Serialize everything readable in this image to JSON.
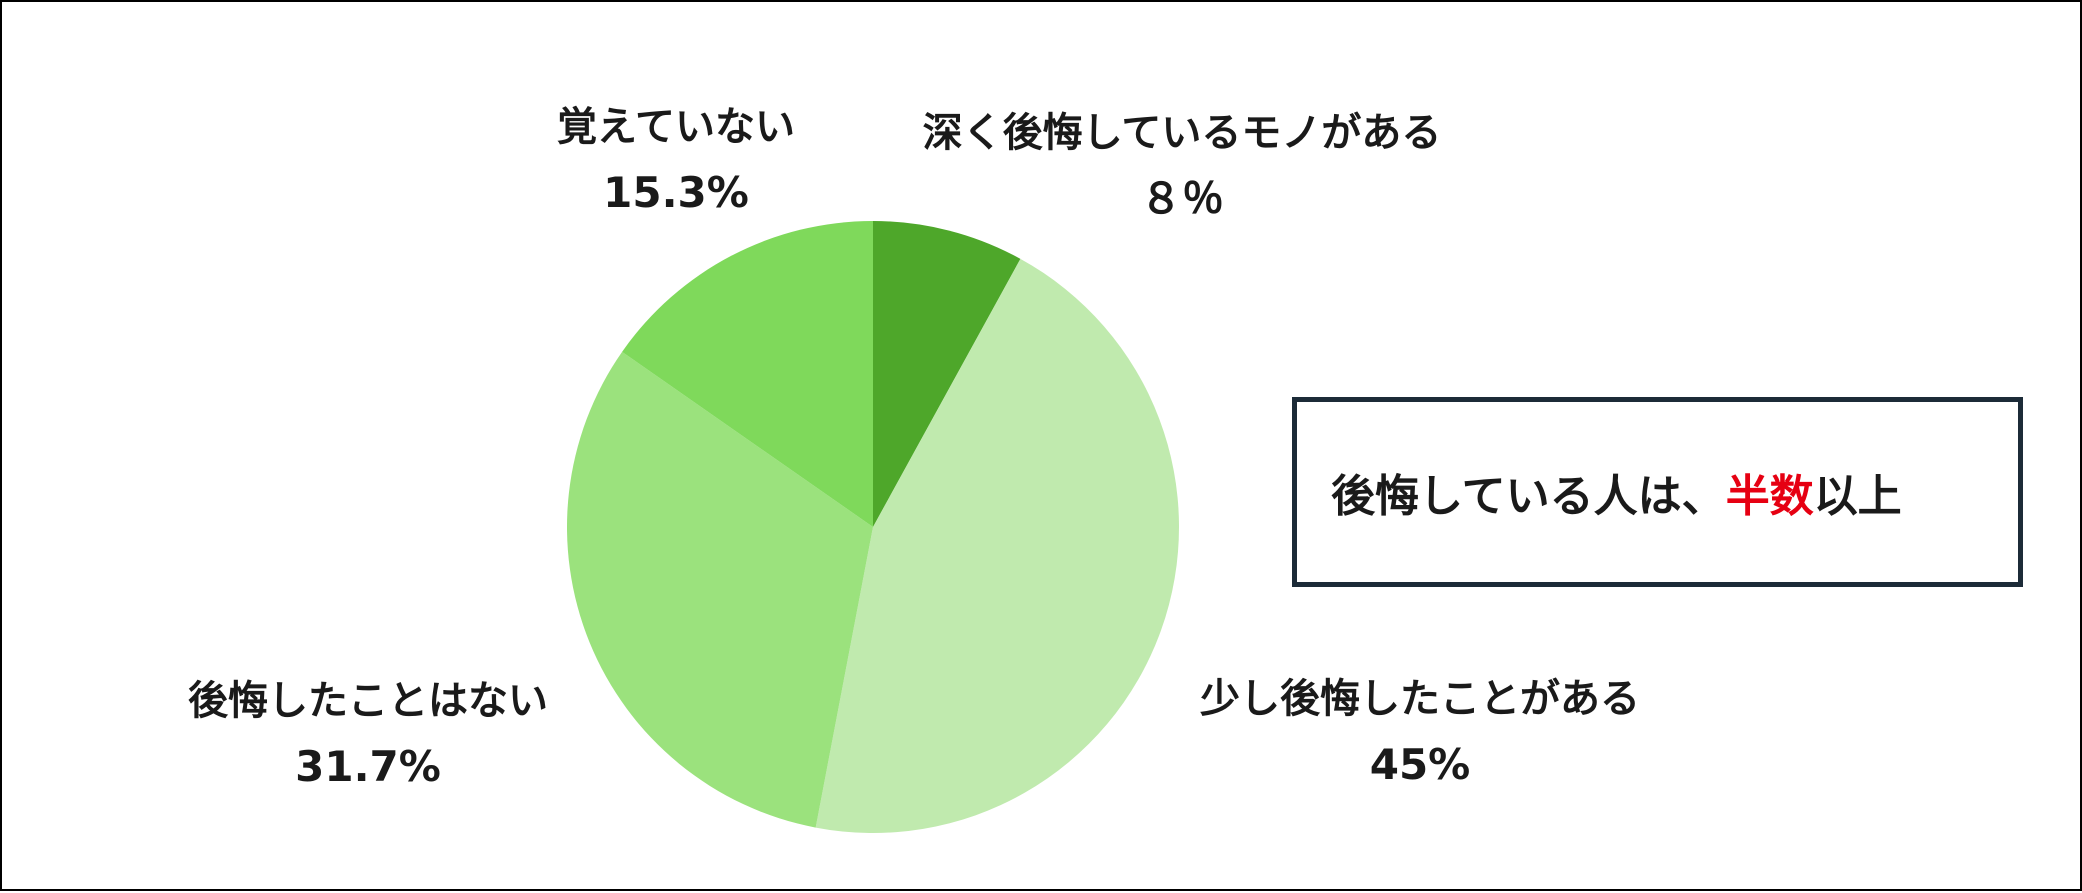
{
  "chart_data": {
    "type": "pie",
    "title": "",
    "slices": [
      {
        "label": "深く後悔しているモノがある",
        "value": 8,
        "value_text": "８％",
        "color": "#4ea72a"
      },
      {
        "label": "少し後悔したことがある",
        "value": 45,
        "value_text": "45%",
        "color": "#c0eaae"
      },
      {
        "label": "後悔したことはない",
        "value": 31.7,
        "value_text": "31.7%",
        "color": "#9be27d"
      },
      {
        "label": "覚えていない",
        "value": 15.3,
        "value_text": "15.3%",
        "color": "#7fd95b"
      }
    ],
    "start_angle": "12 o'clock",
    "direction": "clockwise",
    "annotation": {
      "before": "後悔している人は、",
      "highlight": "半数",
      "after": "以上",
      "highlight_color": "#e60012"
    }
  }
}
